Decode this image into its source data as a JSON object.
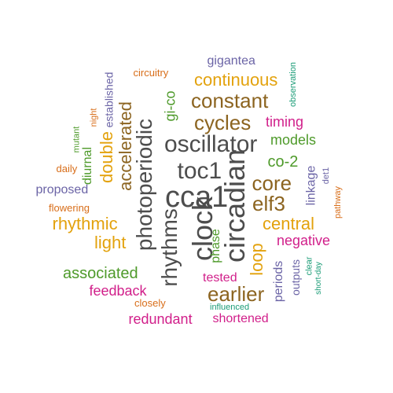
{
  "colors": {
    "grey": "#4d4d4d",
    "brown": "#8c6420",
    "green": "#4e9a2a",
    "orange": "#d86e1a",
    "purple": "#6b64a6",
    "magenta": "#d11f8a",
    "gold": "#e3a20d",
    "teal": "#1b9c77"
  },
  "words": [
    {
      "text": "clock",
      "color": "grey",
      "vertical": true
    },
    {
      "text": "circadian",
      "color": "grey",
      "vertical": true
    },
    {
      "text": "cca1",
      "color": "grey",
      "vertical": false
    },
    {
      "text": "toc1",
      "color": "grey",
      "vertical": false
    },
    {
      "text": "oscillator",
      "color": "grey",
      "vertical": false
    },
    {
      "text": "photoperiodic",
      "color": "grey",
      "vertical": true
    },
    {
      "text": "rhythms",
      "color": "grey",
      "vertical": true
    },
    {
      "text": "constant",
      "color": "brown",
      "vertical": false
    },
    {
      "text": "cycles",
      "color": "brown",
      "vertical": false
    },
    {
      "text": "accelerated",
      "color": "brown",
      "vertical": true
    },
    {
      "text": "core",
      "color": "brown",
      "vertical": false
    },
    {
      "text": "elf3",
      "color": "brown",
      "vertical": false
    },
    {
      "text": "earlier",
      "color": "brown",
      "vertical": false
    },
    {
      "text": "continuous",
      "color": "gold",
      "vertical": false
    },
    {
      "text": "double",
      "color": "gold",
      "vertical": true
    },
    {
      "text": "rhythmic",
      "color": "gold",
      "vertical": false
    },
    {
      "text": "light",
      "color": "gold",
      "vertical": false
    },
    {
      "text": "central",
      "color": "gold",
      "vertical": false
    },
    {
      "text": "loop",
      "color": "gold",
      "vertical": true
    },
    {
      "text": "gi-co",
      "color": "green",
      "vertical": true
    },
    {
      "text": "models",
      "color": "green",
      "vertical": false
    },
    {
      "text": "co-2",
      "color": "green",
      "vertical": false
    },
    {
      "text": "phase",
      "color": "green",
      "vertical": true
    },
    {
      "text": "associated",
      "color": "green",
      "vertical": false
    },
    {
      "text": "diurnal",
      "color": "green",
      "vertical": true
    },
    {
      "text": "mutant",
      "color": "green",
      "vertical": true
    },
    {
      "text": "gigantea",
      "color": "purple",
      "vertical": false
    },
    {
      "text": "established",
      "color": "purple",
      "vertical": true
    },
    {
      "text": "proposed",
      "color": "purple",
      "vertical": false
    },
    {
      "text": "linkage",
      "color": "purple",
      "vertical": true
    },
    {
      "text": "periods",
      "color": "purple",
      "vertical": true
    },
    {
      "text": "outputs",
      "color": "purple",
      "vertical": true
    },
    {
      "text": "det1",
      "color": "purple",
      "vertical": true
    },
    {
      "text": "timing",
      "color": "magenta",
      "vertical": false
    },
    {
      "text": "negative",
      "color": "magenta",
      "vertical": false
    },
    {
      "text": "feedback",
      "color": "magenta",
      "vertical": false
    },
    {
      "text": "tested",
      "color": "magenta",
      "vertical": false
    },
    {
      "text": "redundant",
      "color": "magenta",
      "vertical": false
    },
    {
      "text": "shortened",
      "color": "magenta",
      "vertical": false
    },
    {
      "text": "circuitry",
      "color": "orange",
      "vertical": false
    },
    {
      "text": "night",
      "color": "orange",
      "vertical": true
    },
    {
      "text": "daily",
      "color": "orange",
      "vertical": false
    },
    {
      "text": "flowering",
      "color": "orange",
      "vertical": false
    },
    {
      "text": "closely",
      "color": "orange",
      "vertical": false
    },
    {
      "text": "pathway",
      "color": "orange",
      "vertical": true
    },
    {
      "text": "observation",
      "color": "teal",
      "vertical": true
    },
    {
      "text": "clear",
      "color": "teal",
      "vertical": true
    },
    {
      "text": "short-day",
      "color": "teal",
      "vertical": true
    },
    {
      "text": "influenced",
      "color": "teal",
      "vertical": false
    }
  ]
}
